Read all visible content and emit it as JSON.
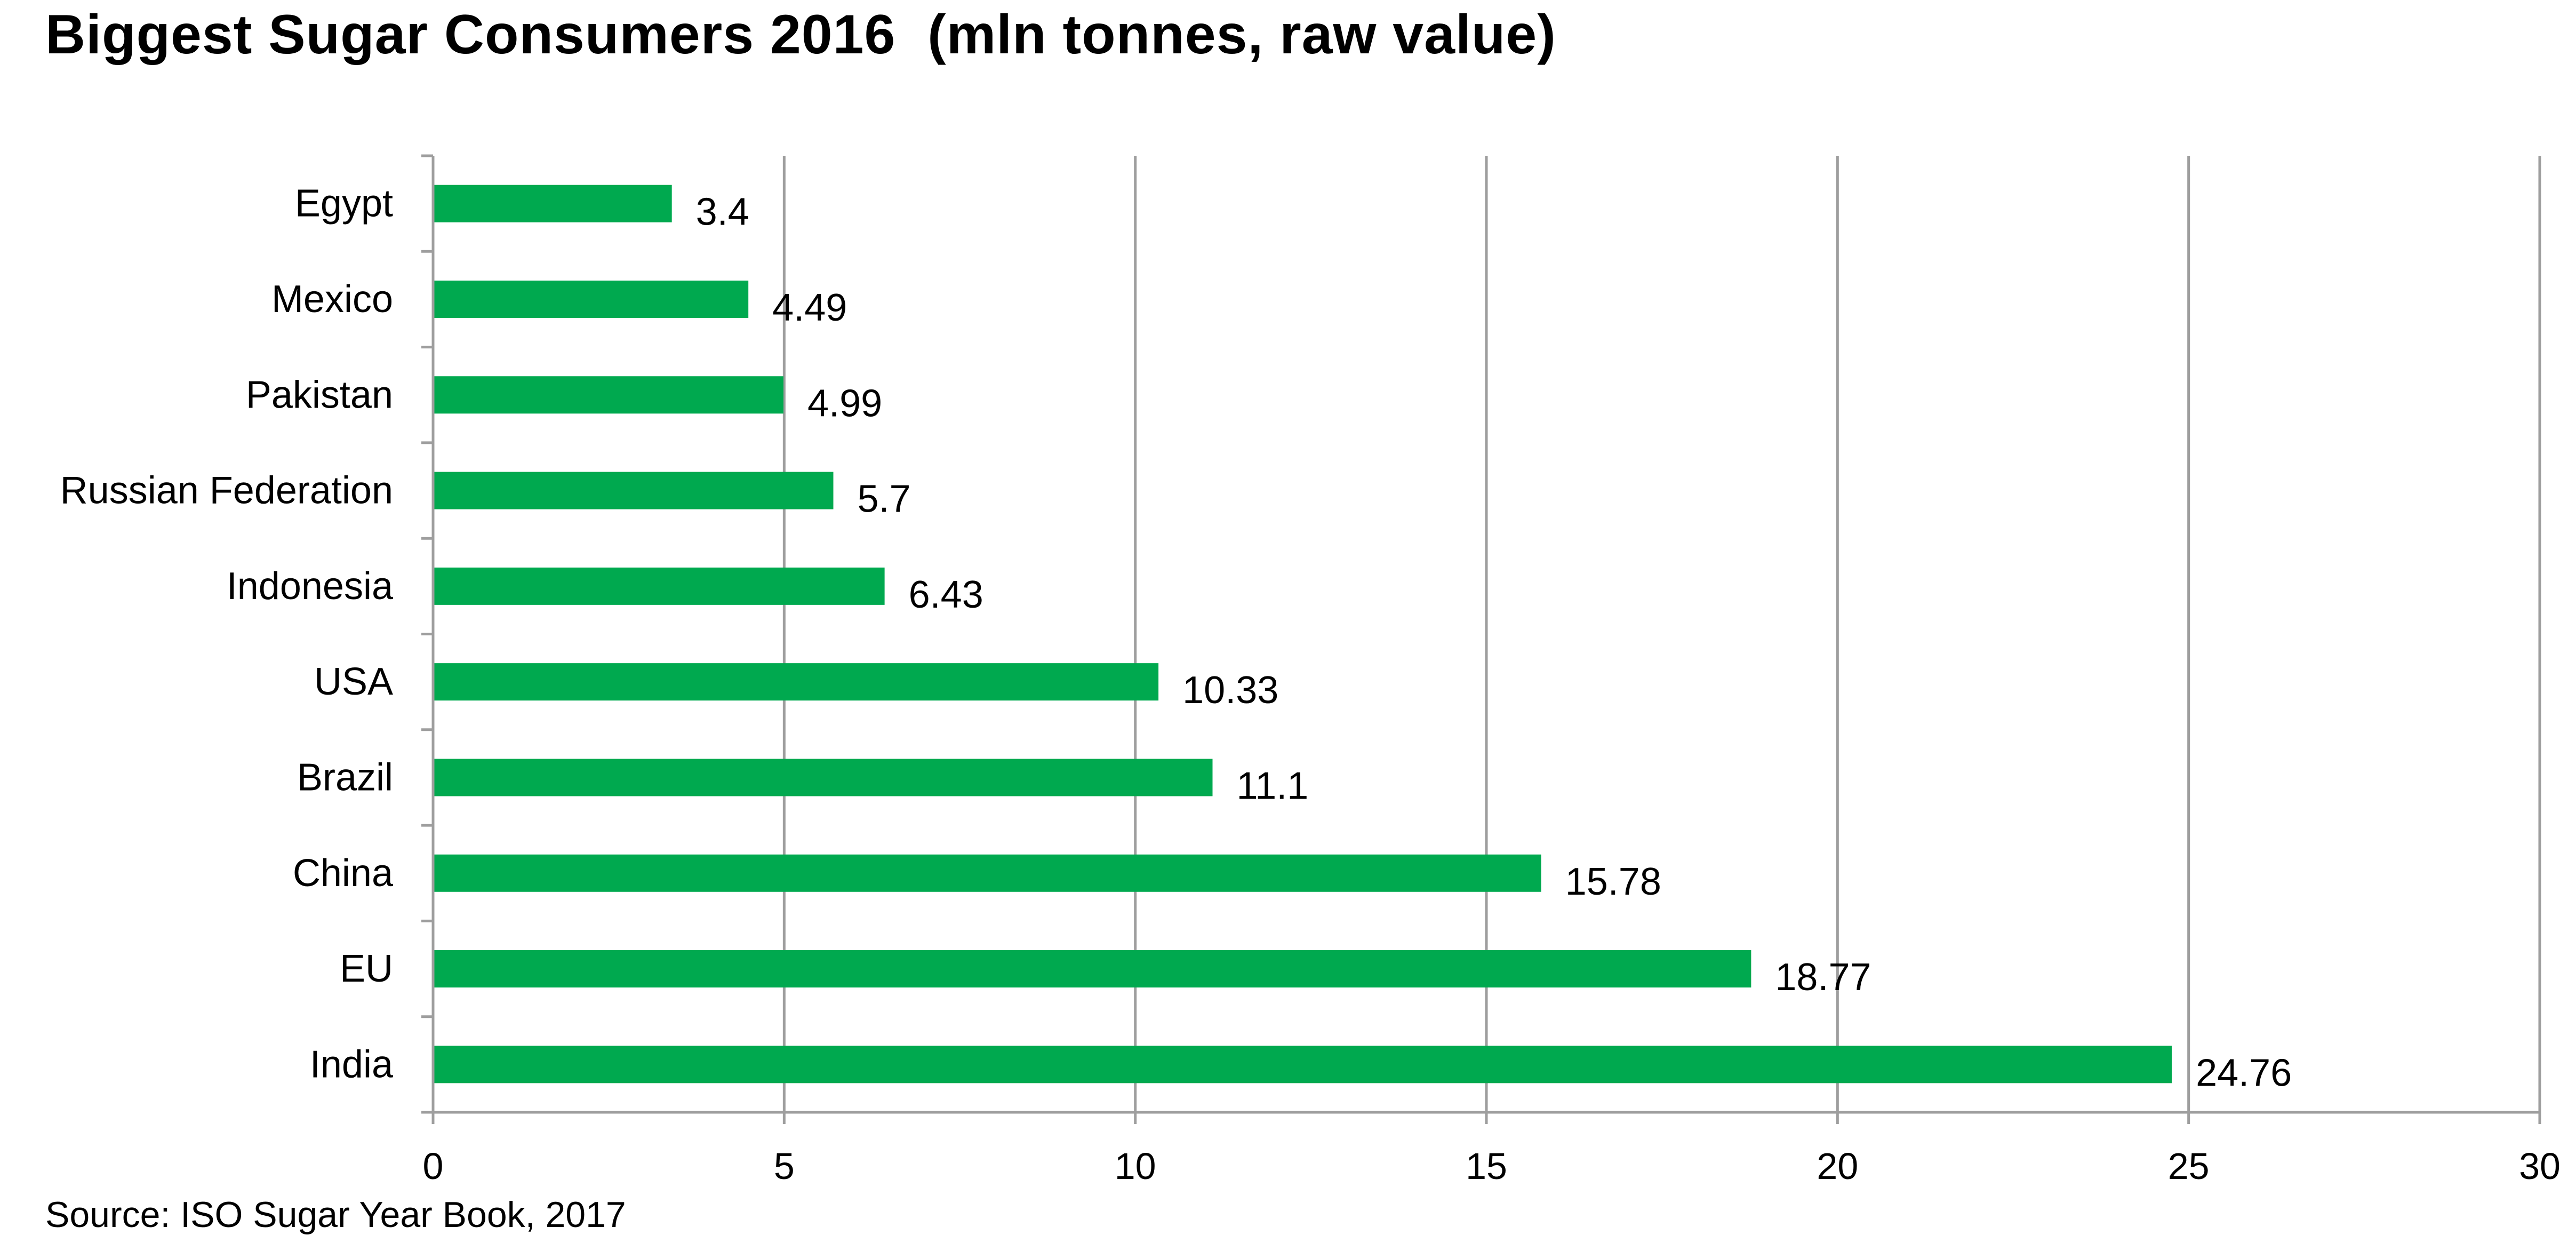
{
  "chart_data": {
    "type": "bar",
    "orientation": "horizontal",
    "title": "Biggest Sugar Consumers 2016  (mln tonnes, raw value)",
    "source": "Source: ISO Sugar Year Book, 2017",
    "categories": [
      "Egypt",
      "Mexico",
      "Pakistan",
      "Russian Federation",
      "Indonesia",
      "USA",
      "Brazil",
      "China",
      "EU",
      "India"
    ],
    "values": [
      3.4,
      4.49,
      4.99,
      5.7,
      6.43,
      10.33,
      11.1,
      15.78,
      18.77,
      24.76
    ],
    "data_labels": [
      "3.4",
      "4.49",
      "4.99",
      "5.7",
      "6.43",
      "10.33",
      "11.1",
      "15.78",
      "18.77",
      "24.76"
    ],
    "xlim": [
      0,
      30
    ],
    "x_ticks": [
      "0",
      "5",
      "10",
      "15",
      "20",
      "25",
      "30"
    ],
    "grid": "vertical",
    "legend": "none",
    "bar_color": "#00A94F",
    "grid_color": "#9e9e9e"
  }
}
